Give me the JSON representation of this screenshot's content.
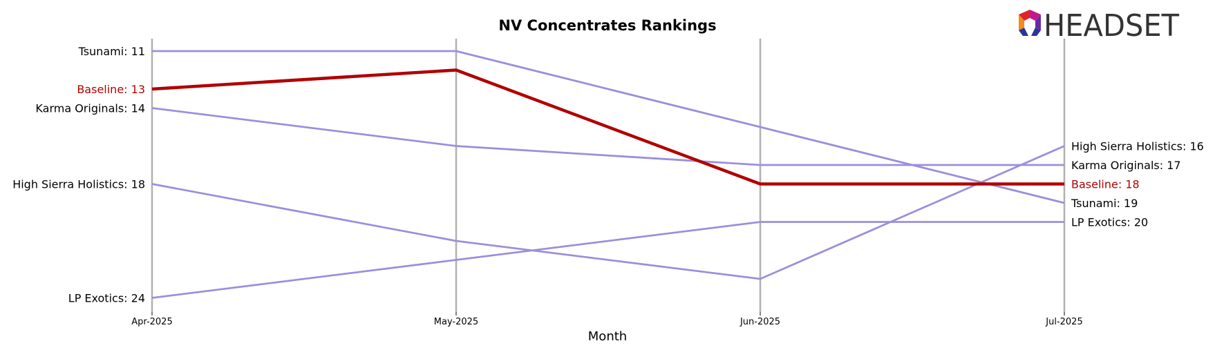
{
  "chart_data": {
    "type": "line",
    "title": "NV Concentrates Rankings",
    "xlabel": "Month",
    "ylabel": "",
    "categories": [
      "Apr-2025",
      "May-2025",
      "Jun-2025",
      "Jul-2025"
    ],
    "ylim": [
      25,
      10
    ],
    "y_inverted": true,
    "grid": "vertical lines at each month",
    "series": [
      {
        "name": "Tsunami",
        "values": [
          11,
          11,
          15,
          19
        ],
        "color": "#9b8fdc",
        "highlight": false
      },
      {
        "name": "Baseline",
        "values": [
          13,
          12,
          18,
          18
        ],
        "color": "#b00000",
        "highlight": true
      },
      {
        "name": "Karma Originals",
        "values": [
          14,
          16,
          17,
          17
        ],
        "color": "#9b8fdc",
        "highlight": false
      },
      {
        "name": "High Sierra Holistics",
        "values": [
          18,
          21,
          23,
          16
        ],
        "color": "#9b8fdc",
        "highlight": false
      },
      {
        "name": "LP Exotics",
        "values": [
          24,
          22,
          20,
          20
        ],
        "color": "#9b8fdc",
        "highlight": false
      }
    ]
  },
  "logo": {
    "text": "HEADSET",
    "colors": [
      "#e0222a",
      "#f28c1a",
      "#c2188b",
      "#6a2aa0",
      "#2a3596"
    ]
  },
  "colors": {
    "gridline": "#b0b0b0",
    "series_default": "#9b8fdc",
    "highlight": "#b00000",
    "text": "#000000"
  }
}
